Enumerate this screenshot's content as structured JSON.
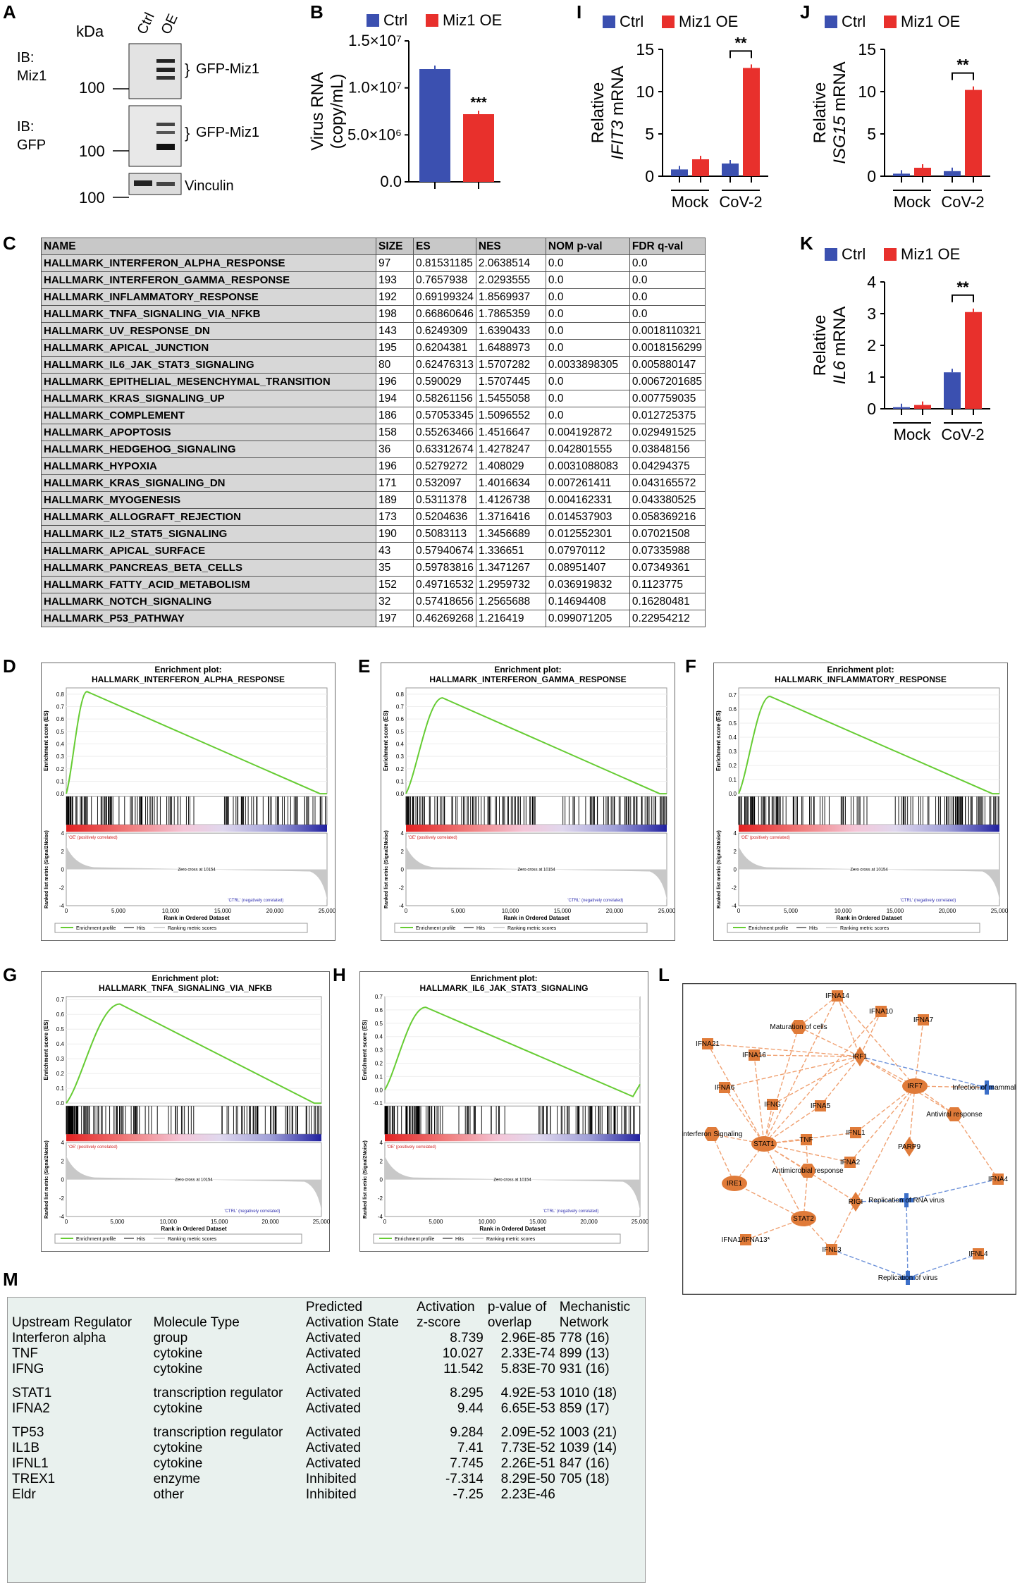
{
  "panel_labels": {
    "A": "A",
    "B": "B",
    "I": "I",
    "J": "J",
    "C": "C",
    "K": "K",
    "D": "D",
    "E": "E",
    "F": "F",
    "G": "G",
    "H": "H",
    "L": "L",
    "M": "M"
  },
  "panel_a": {
    "kda": "kDa",
    "lanes": [
      "Ctrl",
      "OE"
    ],
    "blots": [
      {
        "ib": "IB:",
        "target": "Miz1",
        "marker": "100",
        "band": "GFP-Miz1"
      },
      {
        "ib": "IB:",
        "target": "GFP",
        "marker": "100",
        "band": "GFP-Miz1"
      },
      {
        "marker": "100",
        "band": "Vinculin"
      }
    ]
  },
  "legend": {
    "ctrl": "Ctrl",
    "oe": "Miz1 OE",
    "ctrl_color": "#3b50b0",
    "oe_color": "#e8302c"
  },
  "chart_data": [
    {
      "id": "B",
      "type": "bar",
      "ylabel": "Virus RNA",
      "ylabel2": "(copy/mL)",
      "ylim": [
        0,
        15000000
      ],
      "yticks": [
        "0.0",
        "5.0×10⁶",
        "1.0×10⁷",
        "1.5×10⁷"
      ],
      "categories": [
        "Ctrl",
        "Miz1 OE"
      ],
      "values": [
        12000000,
        7200000
      ],
      "sig": "***"
    },
    {
      "id": "I",
      "type": "bar",
      "ylabel": "Relative",
      "ylabel2": "IFIT3",
      "ylabel3": " mRNA",
      "ylim": [
        0,
        15
      ],
      "yticks": [
        "0",
        "5",
        "10",
        "15"
      ],
      "groups": [
        "Mock",
        "CoV-2"
      ],
      "series": [
        {
          "name": "Ctrl",
          "values": [
            0.8,
            1.5
          ]
        },
        {
          "name": "Miz1 OE",
          "values": [
            2.0,
            12.8
          ]
        }
      ],
      "sig": "**"
    },
    {
      "id": "J",
      "type": "bar",
      "ylabel": "Relative",
      "ylabel2": "ISG15",
      "ylabel3": " mRNA",
      "ylim": [
        0,
        15
      ],
      "yticks": [
        "0",
        "5",
        "10",
        "15"
      ],
      "groups": [
        "Mock",
        "CoV-2"
      ],
      "series": [
        {
          "name": "Ctrl",
          "values": [
            0.3,
            0.6
          ]
        },
        {
          "name": "Miz1 OE",
          "values": [
            1.0,
            10.2
          ]
        }
      ],
      "sig": "**"
    },
    {
      "id": "K",
      "type": "bar",
      "ylabel": "Relative",
      "ylabel2": "IL6",
      "ylabel3": " mRNA",
      "ylim": [
        0,
        4
      ],
      "yticks": [
        "0",
        "1",
        "2",
        "3",
        "4"
      ],
      "groups": [
        "Mock",
        "CoV-2"
      ],
      "series": [
        {
          "name": "Ctrl",
          "values": [
            0.05,
            1.15
          ]
        },
        {
          "name": "Miz1 OE",
          "values": [
            0.12,
            3.05
          ]
        }
      ],
      "sig": "**"
    },
    {
      "id": "GSEA",
      "type": "table",
      "columns": [
        "NAME",
        "SIZE",
        "ES",
        "NES",
        "NOM p-val",
        "FDR q-val"
      ],
      "rows": [
        [
          "HALLMARK_INTERFERON_ALPHA_RESPONSE",
          "97",
          "0.81531185",
          "2.0638514",
          "0.0",
          "0.0"
        ],
        [
          "HALLMARK_INTERFERON_GAMMA_RESPONSE",
          "193",
          "0.7657938",
          "2.0293555",
          "0.0",
          "0.0"
        ],
        [
          "HALLMARK_INFLAMMATORY_RESPONSE",
          "192",
          "0.69199324",
          "1.8569937",
          "0.0",
          "0.0"
        ],
        [
          "HALLMARK_TNFA_SIGNALING_VIA_NFKB",
          "198",
          "0.66860646",
          "1.7865359",
          "0.0",
          "0.0"
        ],
        [
          "HALLMARK_UV_RESPONSE_DN",
          "143",
          "0.6249309",
          "1.6390433",
          "0.0",
          "0.0018110321"
        ],
        [
          "HALLMARK_APICAL_JUNCTION",
          "195",
          "0.6204381",
          "1.6488973",
          "0.0",
          "0.0018156299"
        ],
        [
          "HALLMARK_IL6_JAK_STAT3_SIGNALING",
          "80",
          "0.62476313",
          "1.5707282",
          "0.0033898305",
          "0.005880147"
        ],
        [
          "HALLMARK_EPITHELIAL_MESENCHYMAL_TRANSITION",
          "196",
          "0.590029",
          "1.5707445",
          "0.0",
          "0.0067201685"
        ],
        [
          "HALLMARK_KRAS_SIGNALING_UP",
          "194",
          "0.58261156",
          "1.5455058",
          "0.0",
          "0.007759035"
        ],
        [
          "HALLMARK_COMPLEMENT",
          "186",
          "0.57053345",
          "1.5096552",
          "0.0",
          "0.012725375"
        ],
        [
          "HALLMARK_APOPTOSIS",
          "158",
          "0.55263466",
          "1.4516647",
          "0.004192872",
          "0.029491525"
        ],
        [
          "HALLMARK_HEDGEHOG_SIGNALING",
          "36",
          "0.63312674",
          "1.4278247",
          "0.042801555",
          "0.03848156"
        ],
        [
          "HALLMARK_HYPOXIA",
          "196",
          "0.5279272",
          "1.408029",
          "0.0031088083",
          "0.04294375"
        ],
        [
          "HALLMARK_KRAS_SIGNALING_DN",
          "171",
          "0.532097",
          "1.4016634",
          "0.007261411",
          "0.043165572"
        ],
        [
          "HALLMARK_MYOGENESIS",
          "189",
          "0.5311378",
          "1.4126738",
          "0.004162331",
          "0.043380525"
        ],
        [
          "HALLMARK_ALLOGRAFT_REJECTION",
          "173",
          "0.5204636",
          "1.3716416",
          "0.014537903",
          "0.058369216"
        ],
        [
          "HALLMARK_IL2_STAT5_SIGNALING",
          "190",
          "0.5083113",
          "1.3456689",
          "0.012552301",
          "0.07021508"
        ],
        [
          "HALLMARK_APICAL_SURFACE",
          "43",
          "0.57940674",
          "1.336651",
          "0.07970112",
          "0.07335988"
        ],
        [
          "HALLMARK_PANCREAS_BETA_CELLS",
          "35",
          "0.59783816",
          "1.3471267",
          "0.08951407",
          "0.07349361"
        ],
        [
          "HALLMARK_FATTY_ACID_METABOLISM",
          "152",
          "0.49716532",
          "1.2959732",
          "0.036919832",
          "0.1123775"
        ],
        [
          "HALLMARK_NOTCH_SIGNALING",
          "32",
          "0.57418656",
          "1.2565688",
          "0.14694408",
          "0.16280481"
        ],
        [
          "HALLMARK_P53_PATHWAY",
          "197",
          "0.46269268",
          "1.216419",
          "0.099071205",
          "0.22954212"
        ]
      ]
    }
  ],
  "enrichment": {
    "plot_title": "Enrichment plot:",
    "ylabel": "Enrichment score (ES)",
    "ylabel2": "Ranked list metric (Signal2Noise)",
    "xlabel": "Rank in Ordered Dataset",
    "oe_label": "'OE' (positively correlated)",
    "ctrl_label": "'CTRL' (negatively correlated)",
    "zero_cross": "Zero cross at 10154",
    "legend": [
      "Enrichment profile",
      "Hits",
      "Ranking metric scores"
    ],
    "xticks": [
      "0",
      "5,000",
      "10,000",
      "15,000",
      "20,000",
      "25,000"
    ],
    "rticks": [
      "4",
      "2",
      "0",
      "-2",
      "-4"
    ],
    "plots": [
      {
        "id": "D",
        "name": "HALLMARK_INTERFERON_ALPHA_RESPONSE",
        "yticks": [
          "0.8",
          "0.7",
          "0.6",
          "0.5",
          "0.4",
          "0.3",
          "0.2",
          "0.1",
          "0.0"
        ],
        "ymin": 0,
        "ymax": 0.85,
        "peak": 0.82,
        "peak_x": 0.08,
        "end": 0.0
      },
      {
        "id": "E",
        "name": "HALLMARK_INTERFERON_GAMMA_RESPONSE",
        "yticks": [
          "0.8",
          "0.7",
          "0.6",
          "0.5",
          "0.4",
          "0.3",
          "0.2",
          "0.1",
          "0.0"
        ],
        "ymin": 0,
        "ymax": 0.85,
        "peak": 0.77,
        "peak_x": 0.14,
        "end": 0.0
      },
      {
        "id": "F",
        "name": "HALLMARK_INFLAMMATORY_RESPONSE",
        "yticks": [
          "0.7",
          "0.6",
          "0.5",
          "0.4",
          "0.3",
          "0.2",
          "0.1",
          "0.0"
        ],
        "ymin": 0,
        "ymax": 0.75,
        "peak": 0.69,
        "peak_x": 0.12,
        "end": 0.0
      },
      {
        "id": "G",
        "name": "HALLMARK_TNFA_SIGNALING_VIA_NFKB",
        "yticks": [
          "0.7",
          "0.6",
          "0.5",
          "0.4",
          "0.3",
          "0.2",
          "0.1",
          "0.0"
        ],
        "ymin": 0,
        "ymax": 0.72,
        "peak": 0.67,
        "peak_x": 0.21,
        "end": 0.0
      },
      {
        "id": "H",
        "name": "HALLMARK_IL6_JAK_STAT3_SIGNALING",
        "yticks": [
          "0.7",
          "0.6",
          "0.5",
          "0.4",
          "0.3",
          "0.2",
          "0.1",
          "0.0",
          "-0.1"
        ],
        "ymin": -0.1,
        "ymax": 0.7,
        "peak": 0.62,
        "peak_x": 0.16,
        "end": -0.05
      }
    ]
  },
  "network": {
    "nodes": [
      "IFNA14",
      "IFNA10",
      "IFNA7",
      "Maturation of cells",
      "IFNA21",
      "IFNA16",
      "IRF1",
      "Infection of mammalia",
      "IFNA6",
      "IRF7",
      "IFNG",
      "IFNA5",
      "Antiviral response",
      "Interferon Signaling",
      "IFNL1",
      "STAT1",
      "TNF",
      "PARP9",
      "IFNA2",
      "Antimicrobial response",
      "IFNA4",
      "IRE1",
      "RIGI",
      "Replication of RNA virus",
      "STAT2",
      "IFNA1/IFNA13*",
      "IFNL3",
      "IFNL4",
      "Replication of virus"
    ]
  },
  "panel_m": {
    "headers": [
      [
        "Upstream Regulator"
      ],
      [
        "Molecule Type"
      ],
      [
        "Predicted",
        "Activation State"
      ],
      [
        "Activation",
        "z-score"
      ],
      [
        "p-value of",
        "overlap"
      ],
      [
        "Mechanistic",
        "Network"
      ]
    ],
    "rows": [
      [
        "Interferon alpha",
        "group",
        "Activated",
        "8.739",
        "2.96E-85",
        "778 (16)"
      ],
      [
        "TNF",
        "cytokine",
        "Activated",
        "10.027",
        "2.33E-74",
        "899 (13)"
      ],
      [
        "IFNG",
        "cytokine",
        "Activated",
        "11.542",
        "5.83E-70",
        "931 (16)"
      ],
      [
        "STAT1",
        "transcription regulator",
        "Activated",
        "8.295",
        "4.92E-53",
        "1010 (18)"
      ],
      [
        "IFNA2",
        "cytokine",
        "Activated",
        "9.44",
        "6.65E-53",
        "859 (17)"
      ],
      [
        "TP53",
        "transcription regulator",
        "Activated",
        "9.284",
        "2.09E-52",
        "1003 (21)"
      ],
      [
        "IL1B",
        "cytokine",
        "Activated",
        "7.41",
        "7.73E-52",
        "1039 (14)"
      ],
      [
        "IFNL1",
        "cytokine",
        "Activated",
        "7.745",
        "2.26E-51",
        "847 (16)"
      ],
      [
        "TREX1",
        "enzyme",
        "Inhibited",
        "-7.314",
        "8.29E-50",
        "705 (18)"
      ],
      [
        "Eldr",
        "other",
        "Inhibited",
        "-7.25",
        "2.23E-46",
        ""
      ]
    ]
  }
}
